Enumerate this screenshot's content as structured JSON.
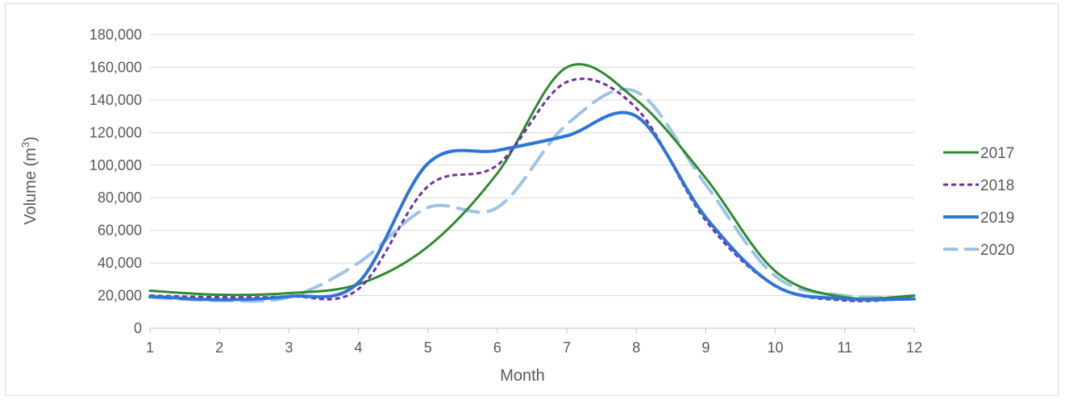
{
  "chart_data": {
    "type": "line",
    "xlabel": "Month",
    "ylabel_main": "Volume (m",
    "ylabel_sup": "3",
    "ylabel_close": ")",
    "x": [
      1,
      2,
      3,
      4,
      5,
      6,
      7,
      8,
      9,
      10,
      11,
      12
    ],
    "xlim": [
      1,
      12
    ],
    "ylim": [
      0,
      180000
    ],
    "y_ticks": [
      0,
      20000,
      40000,
      60000,
      80000,
      100000,
      120000,
      140000,
      160000,
      180000
    ],
    "y_tick_labels": [
      "0",
      "20,000",
      "40,000",
      "60,000",
      "80,000",
      "100,000",
      "120,000",
      "140,000",
      "160,000",
      "180,000"
    ],
    "x_tick_labels": [
      "1",
      "2",
      "3",
      "4",
      "5",
      "6",
      "7",
      "8",
      "9",
      "10",
      "11",
      "12"
    ],
    "grid": true,
    "legend_position": "right",
    "series": [
      {
        "name": "2017",
        "color": "#2e8b2e",
        "dash": "solid",
        "values": [
          23000,
          20500,
          21500,
          27000,
          50000,
          95000,
          160000,
          140000,
          92000,
          35000,
          19000,
          20000
        ]
      },
      {
        "name": "2018",
        "color": "#7030a0",
        "dash": "dotted",
        "values": [
          20000,
          19000,
          19500,
          24000,
          87000,
          100000,
          151000,
          135000,
          66000,
          26000,
          17000,
          18500
        ]
      },
      {
        "name": "2019",
        "color": "#2e75d6",
        "dash": "thick",
        "values": [
          19500,
          17500,
          19500,
          28000,
          101000,
          109000,
          118000,
          130000,
          68000,
          26000,
          18000,
          18000
        ]
      },
      {
        "name": "2020",
        "color": "#9dc3e6",
        "dash": "long-dash",
        "values": [
          19000,
          17000,
          19000,
          40000,
          74000,
          74000,
          125000,
          145000,
          88000,
          32000,
          20000,
          19000
        ]
      }
    ]
  }
}
